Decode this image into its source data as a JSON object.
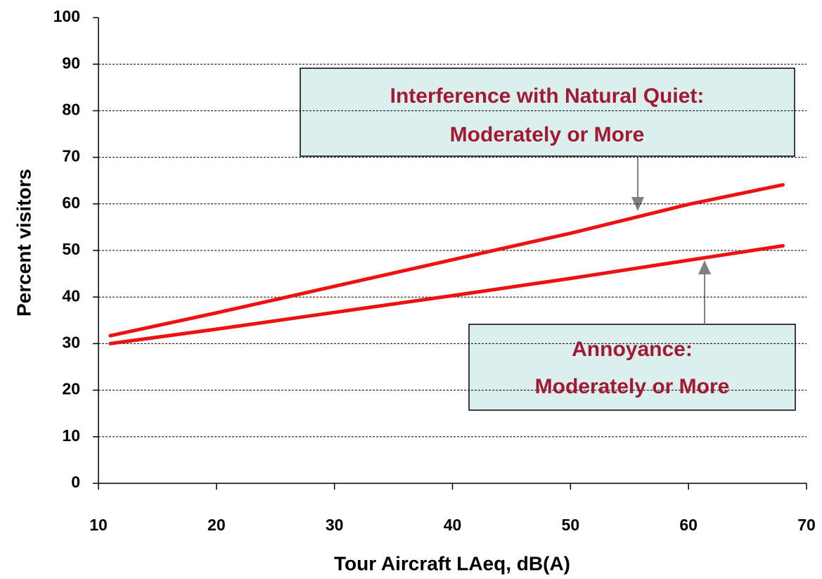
{
  "chart_data": {
    "type": "line",
    "xlabel": "Tour Aircraft LAeq, dB(A)",
    "ylabel": "Percent visitors",
    "x": [
      11,
      20,
      30,
      40,
      50,
      60,
      68
    ],
    "series": [
      {
        "name": "Interference with Natural Quiet",
        "color": "#ee1111",
        "values": [
          31.7,
          36.6,
          42.3,
          48,
          53.7,
          59.9,
          64.1
        ]
      },
      {
        "name": "Annoyance",
        "color": "#ee1111",
        "values": [
          30,
          33.1,
          36.7,
          40.3,
          44,
          47.9,
          51
        ]
      }
    ],
    "xlim": [
      10,
      70
    ],
    "xticks": [
      10,
      20,
      30,
      40,
      50,
      60,
      70
    ],
    "ylim": [
      0,
      100
    ],
    "yticks": [
      0,
      10,
      20,
      30,
      40,
      50,
      60,
      70,
      80,
      90,
      100
    ],
    "grid": true,
    "annotations": [
      {
        "lines": [
          "Interference with Natural Quiet:",
          "Moderately or More"
        ]
      },
      {
        "lines": [
          "Annoyance:",
          "Moderately or More"
        ]
      }
    ]
  }
}
